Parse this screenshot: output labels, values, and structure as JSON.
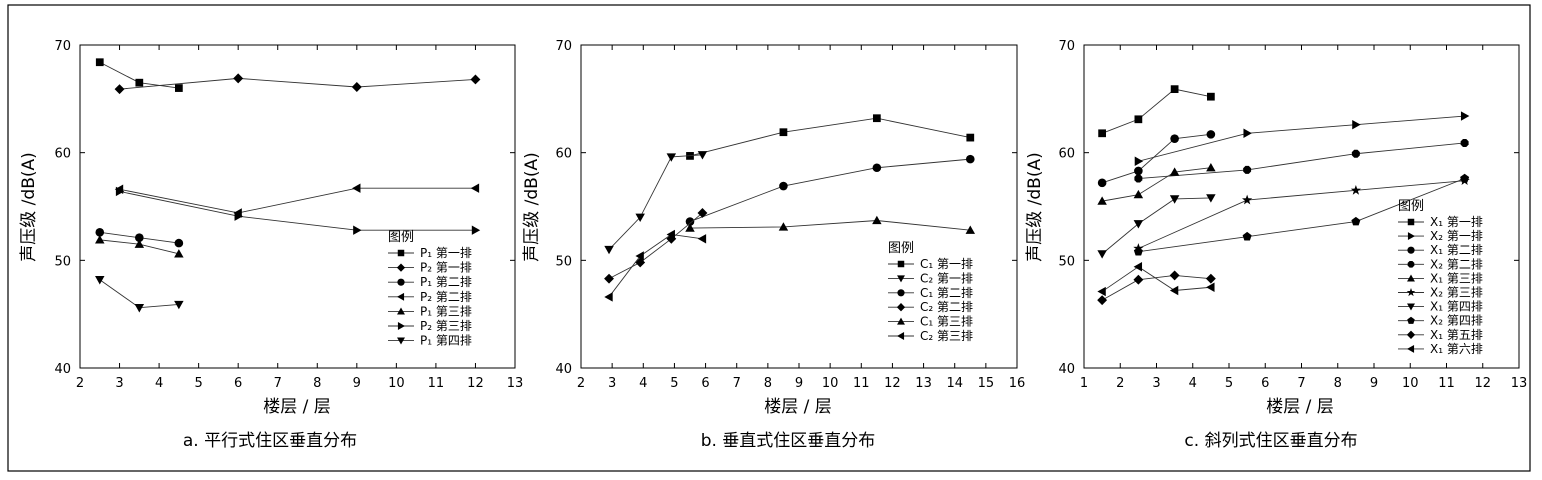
{
  "chart_data": [
    {
      "type": "line",
      "caption": "a. 平行式住区垂直分布",
      "xlabel": "楼层 / 层",
      "ylabel": "声压级 /dB(A)",
      "xlim": [
        2,
        13
      ],
      "ylim": [
        40,
        70
      ],
      "xticks": [
        2,
        3,
        4,
        5,
        6,
        7,
        8,
        9,
        10,
        11,
        12,
        13
      ],
      "yticks": [
        40,
        50,
        60,
        70
      ],
      "grid": false,
      "legend_title": "图例",
      "legend_position": "bottom-right",
      "series": [
        {
          "name": "P₁ 第一排",
          "marker": "square",
          "x": [
            2.5,
            3.5,
            4.5
          ],
          "y": [
            68.4,
            66.5,
            66.0
          ]
        },
        {
          "name": "P₂ 第一排",
          "marker": "diamond",
          "x": [
            3,
            6,
            9,
            12
          ],
          "y": [
            65.9,
            66.9,
            66.1,
            66.8
          ]
        },
        {
          "name": "P₁ 第二排",
          "marker": "circle",
          "x": [
            2.5,
            3.5,
            4.5
          ],
          "y": [
            52.6,
            52.1,
            51.6
          ]
        },
        {
          "name": "P₂ 第二排",
          "marker": "triangle-left",
          "x": [
            3,
            6,
            9,
            12
          ],
          "y": [
            56.6,
            54.4,
            56.7,
            56.7
          ]
        },
        {
          "name": "P₁ 第三排",
          "marker": "triangle-up",
          "x": [
            2.5,
            3.5,
            4.5
          ],
          "y": [
            51.9,
            51.5,
            50.6
          ]
        },
        {
          "name": "P₂ 第三排",
          "marker": "triangle-right",
          "x": [
            3,
            6,
            9,
            12
          ],
          "y": [
            56.4,
            54.1,
            52.8,
            52.8
          ]
        },
        {
          "name": "P₁ 第四排",
          "marker": "triangle-down",
          "x": [
            2.5,
            3.5,
            4.5
          ],
          "y": [
            48.2,
            45.6,
            45.9
          ]
        }
      ]
    },
    {
      "type": "line",
      "caption": "b. 垂直式住区垂直分布",
      "xlabel": "楼层 / 层",
      "ylabel": "声压级 /dB(A)",
      "xlim": [
        2,
        16
      ],
      "ylim": [
        40,
        70
      ],
      "xticks": [
        2,
        3,
        4,
        5,
        6,
        7,
        8,
        9,
        10,
        11,
        12,
        13,
        14,
        15,
        16
      ],
      "yticks": [
        40,
        50,
        60,
        70
      ],
      "grid": false,
      "legend_title": "图例",
      "legend_position": "bottom-right",
      "series": [
        {
          "name": "C₁ 第一排",
          "marker": "square",
          "x": [
            5.5,
            8.5,
            11.5,
            14.5
          ],
          "y": [
            59.7,
            61.9,
            63.2,
            61.4
          ]
        },
        {
          "name": "C₂ 第一排",
          "marker": "triangle-down",
          "x": [
            2.9,
            3.9,
            4.9,
            5.9
          ],
          "y": [
            51.0,
            54.0,
            59.6,
            59.8
          ]
        },
        {
          "name": "C₁ 第二排",
          "marker": "circle",
          "x": [
            5.5,
            8.5,
            11.5,
            14.5
          ],
          "y": [
            53.6,
            56.9,
            58.6,
            59.4
          ]
        },
        {
          "name": "C₂ 第二排",
          "marker": "diamond",
          "x": [
            2.9,
            3.9,
            4.9,
            5.9
          ],
          "y": [
            48.3,
            49.8,
            52.0,
            54.4
          ]
        },
        {
          "name": "C₁ 第三排",
          "marker": "triangle-up",
          "x": [
            5.5,
            8.5,
            11.5,
            14.5
          ],
          "y": [
            53.0,
            53.1,
            53.7,
            52.8
          ]
        },
        {
          "name": "C₂ 第三排",
          "marker": "triangle-left",
          "x": [
            2.9,
            3.9,
            4.9,
            5.9
          ],
          "y": [
            46.6,
            50.4,
            52.4,
            52.0
          ]
        }
      ]
    },
    {
      "type": "line",
      "caption": "c. 斜列式住区垂直分布",
      "xlabel": "楼层 / 层",
      "ylabel": "声压级 /dB(A)",
      "xlim": [
        1,
        13
      ],
      "ylim": [
        40,
        70
      ],
      "xticks": [
        1,
        2,
        3,
        4,
        5,
        6,
        7,
        8,
        9,
        10,
        11,
        12,
        13
      ],
      "yticks": [
        40,
        50,
        60,
        70
      ],
      "grid": false,
      "legend_title": "图例",
      "legend_position": "right",
      "series": [
        {
          "name": "X₁ 第一排",
          "marker": "square",
          "x": [
            1.5,
            2.5,
            3.5,
            4.5
          ],
          "y": [
            61.8,
            63.1,
            65.9,
            65.2
          ]
        },
        {
          "name": "X₂ 第一排",
          "marker": "triangle-right",
          "x": [
            2.5,
            5.5,
            8.5,
            11.5
          ],
          "y": [
            59.2,
            61.8,
            62.6,
            63.4
          ]
        },
        {
          "name": "X₁ 第二排",
          "marker": "circle",
          "x": [
            1.5,
            2.5,
            3.5,
            4.5
          ],
          "y": [
            57.2,
            58.3,
            61.3,
            61.7
          ]
        },
        {
          "name": "X₂ 第二排",
          "marker": "octagon",
          "x": [
            2.5,
            5.5,
            8.5,
            11.5
          ],
          "y": [
            57.6,
            58.4,
            59.9,
            60.9
          ]
        },
        {
          "name": "X₁ 第三排",
          "marker": "triangle-up",
          "x": [
            1.5,
            2.5,
            3.5,
            4.5
          ],
          "y": [
            55.5,
            56.1,
            58.2,
            58.6
          ]
        },
        {
          "name": "X₂ 第三排",
          "marker": "star",
          "x": [
            2.5,
            5.5,
            8.5,
            11.5
          ],
          "y": [
            51.1,
            55.6,
            56.5,
            57.4
          ]
        },
        {
          "name": "X₁ 第四排",
          "marker": "triangle-down",
          "x": [
            1.5,
            2.5,
            3.5,
            4.5
          ],
          "y": [
            50.6,
            53.4,
            55.7,
            55.8
          ]
        },
        {
          "name": "X₂ 第四排",
          "marker": "pentagon",
          "x": [
            2.5,
            5.5,
            8.5,
            11.5
          ],
          "y": [
            50.8,
            52.2,
            53.6,
            57.6
          ]
        },
        {
          "name": "X₁ 第五排",
          "marker": "diamond",
          "x": [
            1.5,
            2.5,
            3.5,
            4.5
          ],
          "y": [
            46.3,
            48.2,
            48.6,
            48.3
          ]
        },
        {
          "name": "X₁ 第六排",
          "marker": "triangle-left",
          "x": [
            1.5,
            2.5,
            3.5,
            4.5
          ],
          "y": [
            47.1,
            49.4,
            47.2,
            47.5
          ]
        }
      ]
    }
  ]
}
